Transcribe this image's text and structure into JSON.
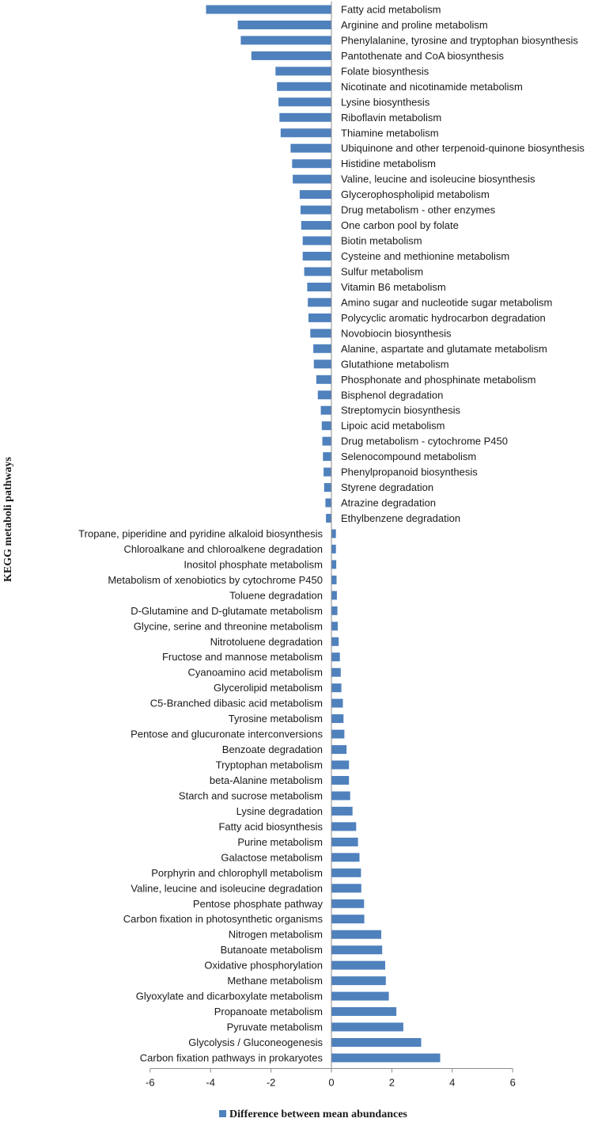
{
  "chart_data": {
    "type": "bar",
    "orientation": "horizontal",
    "ylabel": "KEGG metaboli pathways",
    "xlabel": "",
    "xlim": [
      -6,
      6
    ],
    "xticks": [
      -6,
      -4,
      -2,
      0,
      2,
      4,
      6
    ],
    "grid": false,
    "legend_position": "bottom",
    "series": [
      {
        "name": "Difference between mean abundances",
        "color": "#4F81BD"
      }
    ],
    "categories": [
      "Fatty acid metabolism",
      "Arginine and proline metabolism",
      "Phenylalanine, tyrosine and tryptophan biosynthesis",
      "Pantothenate and CoA biosynthesis",
      "Folate biosynthesis",
      "Nicotinate and nicotinamide metabolism",
      "Lysine biosynthesis",
      "Riboflavin metabolism",
      "Thiamine metabolism",
      "Ubiquinone and other terpenoid-quinone biosynthesis",
      "Histidine metabolism",
      "Valine, leucine and isoleucine biosynthesis",
      "Glycerophospholipid metabolism",
      "Drug metabolism - other enzymes",
      "One carbon pool by folate",
      "Biotin metabolism",
      "Cysteine and methionine metabolism",
      "Sulfur metabolism",
      "Vitamin B6 metabolism",
      "Amino sugar and nucleotide sugar metabolism",
      "Polycyclic aromatic hydrocarbon degradation",
      "Novobiocin biosynthesis",
      "Alanine, aspartate and glutamate metabolism",
      "Glutathione metabolism",
      "Phosphonate and phosphinate metabolism",
      "Bisphenol degradation",
      "Streptomycin biosynthesis",
      "Lipoic acid metabolism",
      "Drug metabolism - cytochrome P450",
      "Selenocompound metabolism",
      "Phenylpropanoid biosynthesis",
      "Styrene degradation",
      "Atrazine degradation",
      "Ethylbenzene degradation",
      "Tropane, piperidine and pyridine alkaloid biosynthesis",
      "Chloroalkane and chloroalkene degradation",
      "Inositol phosphate metabolism",
      "Metabolism of xenobiotics by cytochrome P450",
      "Toluene degradation",
      "D-Glutamine and D-glutamate metabolism",
      "Glycine, serine and threonine metabolism",
      "Nitrotoluene degradation",
      "Fructose and mannose metabolism",
      "Cyanoamino acid metabolism",
      "Glycerolipid metabolism",
      "C5-Branched dibasic acid metabolism",
      "Tyrosine metabolism",
      "Pentose and glucuronate interconversions",
      "Benzoate degradation",
      "Tryptophan metabolism",
      "beta-Alanine metabolism",
      "Starch and sucrose metabolism",
      "Lysine degradation",
      "Fatty acid biosynthesis",
      "Purine metabolism",
      "Galactose metabolism",
      "Porphyrin and chlorophyll metabolism",
      "Valine, leucine and isoleucine degradation",
      "Pentose phosphate pathway",
      "Carbon fixation in photosynthetic organisms",
      "Nitrogen metabolism",
      "Butanoate metabolism",
      "Oxidative phosphorylation",
      "Methane metabolism",
      "Glyoxylate and dicarboxylate metabolism",
      "Propanoate metabolism",
      "Pyruvate metabolism",
      "Glycolysis / Gluconeogenesis",
      "Carbon fixation pathways in prokaryotes"
    ],
    "values": [
      -4.15,
      -3.1,
      -3.0,
      -2.65,
      -1.85,
      -1.8,
      -1.75,
      -1.72,
      -1.68,
      -1.35,
      -1.3,
      -1.28,
      -1.05,
      -1.02,
      -1.0,
      -0.95,
      -0.95,
      -0.9,
      -0.8,
      -0.78,
      -0.76,
      -0.7,
      -0.6,
      -0.58,
      -0.5,
      -0.45,
      -0.35,
      -0.32,
      -0.3,
      -0.28,
      -0.26,
      -0.24,
      -0.2,
      -0.18,
      0.15,
      0.15,
      0.16,
      0.17,
      0.18,
      0.2,
      0.21,
      0.24,
      0.28,
      0.31,
      0.33,
      0.38,
      0.4,
      0.43,
      0.5,
      0.58,
      0.58,
      0.62,
      0.7,
      0.82,
      0.88,
      0.93,
      0.98,
      0.99,
      1.08,
      1.09,
      1.65,
      1.68,
      1.78,
      1.8,
      1.9,
      2.15,
      2.38,
      2.97,
      3.6
    ]
  }
}
